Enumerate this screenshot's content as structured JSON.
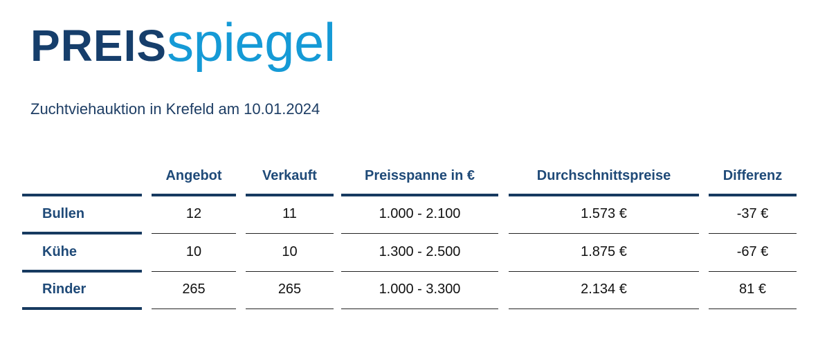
{
  "logo": {
    "bold": "PREIS",
    "light": "spiegel"
  },
  "subtitle": "Zuchtviehauktion in Krefeld am 10.01.2024",
  "table": {
    "columns": [
      "Angebot",
      "Verkauft",
      "Preisspanne in €",
      "Durchschnittspreise",
      "Differenz"
    ],
    "rows": [
      {
        "label": "Bullen",
        "cells": [
          "12",
          "11",
          "1.000 - 2.100",
          "1.573 €",
          "-37 €"
        ]
      },
      {
        "label": "Kühe",
        "cells": [
          "10",
          "10",
          "1.300 - 2.500",
          "1.875 €",
          "-67 €"
        ]
      },
      {
        "label": "Rinder",
        "cells": [
          "265",
          "265",
          "1.000 - 3.300",
          "2.134 €",
          "81 €"
        ]
      }
    ]
  },
  "colors": {
    "navy": "#163e6b",
    "accent_blue": "#159ad6",
    "rule": "#173a60"
  }
}
